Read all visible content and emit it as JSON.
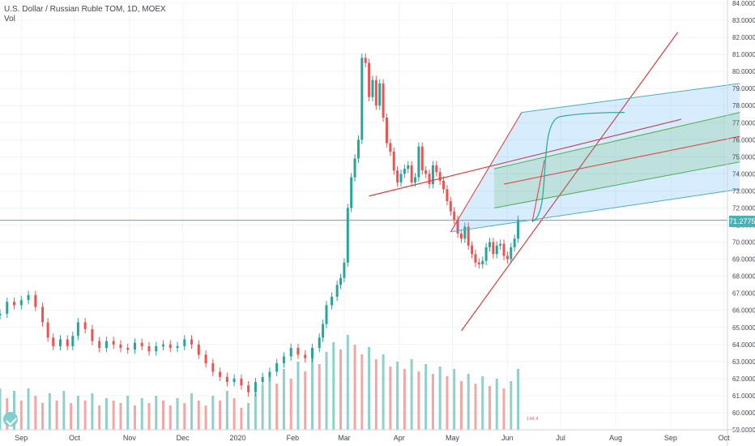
{
  "header": {
    "symbol_line": "U.S. Dollar / Russian Ruble TOM, 1D, MOEX",
    "volume_label": "Vol"
  },
  "last_price": "71.2775",
  "colors": {
    "up": "#26a69a",
    "down": "#ef5350",
    "vol_up": "#8fd0c8",
    "vol_down": "#f4a6a4",
    "trend": "#e53935",
    "channel_blue": "#2196f3",
    "channel_green": "#4caf50"
  },
  "chart_data": {
    "type": "candlestick",
    "ylim": [
      59.0,
      84.0
    ],
    "y_ticks": [
      "59.0000",
      "60.0000",
      "61.0000",
      "62.0000",
      "63.0000",
      "64.0000",
      "65.0000",
      "66.0000",
      "67.0000",
      "68.0000",
      "69.0000",
      "70.0000",
      "71.0000",
      "72.0000",
      "73.0000",
      "74.0000",
      "75.0000",
      "76.0000",
      "77.0000",
      "78.0000",
      "79.0000",
      "80.0000",
      "81.0000",
      "82.0000",
      "83.0000",
      "84.0000"
    ],
    "x_labels": [
      "Sep",
      "Oct",
      "Nov",
      "Dec",
      "2020",
      "Feb",
      "Mar",
      "Apr",
      "May",
      "Jun",
      "Jul",
      "Aug",
      "Sep",
      "Oct"
    ],
    "x_label_days": [
      0,
      30,
      61,
      91,
      122,
      153,
      182,
      213,
      243,
      274,
      304,
      335,
      366,
      396
    ],
    "x_range_days": [
      -12,
      398
    ],
    "price_series": [
      [
        -12,
        65.8
      ],
      [
        -8,
        66.5
      ],
      [
        -4,
        66.3
      ],
      [
        0,
        66.6
      ],
      [
        4,
        66.9
      ],
      [
        8,
        66.2
      ],
      [
        12,
        65.3
      ],
      [
        15,
        64.4
      ],
      [
        18,
        63.9
      ],
      [
        22,
        64.3
      ],
      [
        26,
        63.9
      ],
      [
        29,
        64.5
      ],
      [
        32,
        65.3
      ],
      [
        36,
        64.9
      ],
      [
        40,
        64.2
      ],
      [
        44,
        63.8
      ],
      [
        48,
        64.2
      ],
      [
        52,
        64.0
      ],
      [
        56,
        63.8
      ],
      [
        60,
        63.7
      ],
      [
        64,
        64.1
      ],
      [
        68,
        63.9
      ],
      [
        72,
        63.6
      ],
      [
        76,
        63.9
      ],
      [
        80,
        64.0
      ],
      [
        84,
        63.8
      ],
      [
        88,
        63.9
      ],
      [
        92,
        64.3
      ],
      [
        96,
        64.0
      ],
      [
        100,
        63.4
      ],
      [
        104,
        62.9
      ],
      [
        108,
        62.4
      ],
      [
        112,
        62.1
      ],
      [
        116,
        61.8
      ],
      [
        120,
        62.0
      ],
      [
        124,
        61.6
      ],
      [
        128,
        61.2
      ],
      [
        132,
        61.8
      ],
      [
        136,
        62.1
      ],
      [
        140,
        62.4
      ],
      [
        144,
        62.9
      ],
      [
        148,
        63.3
      ],
      [
        152,
        63.8
      ],
      [
        156,
        63.4
      ],
      [
        160,
        63.2
      ],
      [
        164,
        63.8
      ],
      [
        168,
        64.4
      ],
      [
        170,
        65.2
      ],
      [
        172,
        66.3
      ],
      [
        175,
        66.8
      ],
      [
        178,
        67.5
      ],
      [
        180,
        67.9
      ],
      [
        182,
        68.8
      ],
      [
        184,
        72.0
      ],
      [
        186,
        73.8
      ],
      [
        188,
        74.9
      ],
      [
        190,
        76.0
      ],
      [
        192,
        80.8
      ],
      [
        194,
        80.5
      ],
      [
        196,
        78.5
      ],
      [
        198,
        79.5
      ],
      [
        200,
        78.0
      ],
      [
        202,
        79.3
      ],
      [
        204,
        77.3
      ],
      [
        206,
        75.8
      ],
      [
        208,
        75.3
      ],
      [
        210,
        74.2
      ],
      [
        212,
        73.5
      ],
      [
        214,
        74.0
      ],
      [
        216,
        74.3
      ],
      [
        218,
        74.5
      ],
      [
        220,
        73.5
      ],
      [
        222,
        73.8
      ],
      [
        224,
        75.6
      ],
      [
        226,
        74.2
      ],
      [
        228,
        74.0
      ],
      [
        230,
        73.4
      ],
      [
        232,
        74.5
      ],
      [
        234,
        74.1
      ],
      [
        236,
        73.6
      ],
      [
        238,
        73.1
      ],
      [
        240,
        72.4
      ],
      [
        242,
        71.8
      ],
      [
        244,
        71.3
      ],
      [
        246,
        70.5
      ],
      [
        248,
        70.2
      ],
      [
        250,
        70.9
      ],
      [
        252,
        69.8
      ],
      [
        254,
        69.3
      ],
      [
        256,
        68.8
      ],
      [
        258,
        68.7
      ],
      [
        260,
        68.9
      ],
      [
        262,
        69.7
      ],
      [
        264,
        70.0
      ],
      [
        266,
        69.3
      ],
      [
        268,
        69.8
      ],
      [
        270,
        69.9
      ],
      [
        272,
        69.2
      ],
      [
        274,
        69.0
      ],
      [
        276,
        69.7
      ],
      [
        278,
        70.2
      ],
      [
        280,
        71.3
      ]
    ],
    "volume_series": [
      [
        -12,
        1.7
      ],
      [
        -8,
        1.3
      ],
      [
        -4,
        1.6
      ],
      [
        0,
        1.2
      ],
      [
        4,
        1.7
      ],
      [
        8,
        1.4
      ],
      [
        12,
        1.1
      ],
      [
        16,
        1.5
      ],
      [
        20,
        1.2
      ],
      [
        24,
        1.6
      ],
      [
        28,
        1.1
      ],
      [
        32,
        1.4
      ],
      [
        36,
        1.2
      ],
      [
        40,
        1.5
      ],
      [
        44,
        1.0
      ],
      [
        48,
        1.3
      ],
      [
        52,
        1.2
      ],
      [
        56,
        1.1
      ],
      [
        60,
        1.4
      ],
      [
        64,
        1.0
      ],
      [
        68,
        1.3
      ],
      [
        72,
        1.1
      ],
      [
        76,
        1.4
      ],
      [
        80,
        1.2
      ],
      [
        84,
        1.0
      ],
      [
        88,
        1.3
      ],
      [
        92,
        1.1
      ],
      [
        96,
        1.5
      ],
      [
        100,
        1.2
      ],
      [
        104,
        1.0
      ],
      [
        108,
        1.4
      ],
      [
        112,
        1.2
      ],
      [
        116,
        1.6
      ],
      [
        120,
        1.3
      ],
      [
        124,
        0.9
      ],
      [
        128,
        1.1
      ],
      [
        132,
        1.5
      ],
      [
        136,
        1.8
      ],
      [
        140,
        2.2
      ],
      [
        144,
        1.9
      ],
      [
        148,
        2.5
      ],
      [
        152,
        2.1
      ],
      [
        156,
        2.8
      ],
      [
        160,
        2.4
      ],
      [
        164,
        3.0
      ],
      [
        168,
        2.7
      ],
      [
        172,
        3.2
      ],
      [
        176,
        3.6
      ],
      [
        180,
        3.3
      ],
      [
        184,
        3.9
      ],
      [
        188,
        3.5
      ],
      [
        192,
        3.1
      ],
      [
        196,
        3.4
      ],
      [
        200,
        2.9
      ],
      [
        204,
        3.1
      ],
      [
        208,
        2.6
      ],
      [
        212,
        2.8
      ],
      [
        216,
        2.5
      ],
      [
        220,
        2.9
      ],
      [
        224,
        2.4
      ],
      [
        228,
        2.7
      ],
      [
        232,
        2.3
      ],
      [
        236,
        2.6
      ],
      [
        240,
        2.2
      ],
      [
        244,
        2.5
      ],
      [
        248,
        2.0
      ],
      [
        252,
        2.3
      ],
      [
        256,
        1.9
      ],
      [
        260,
        2.2
      ],
      [
        264,
        1.8
      ],
      [
        268,
        2.1
      ],
      [
        272,
        1.7
      ],
      [
        276,
        2.0
      ],
      [
        280,
        2.5
      ]
    ],
    "overlays": [
      {
        "kind": "ray",
        "x": [
          248,
          370
        ],
        "y": [
          64.8,
          82.3
        ]
      },
      {
        "kind": "ray",
        "x": [
          196,
          372
        ],
        "y": [
          72.7,
          77.2
        ]
      },
      {
        "kind": "channel",
        "x": [
          242,
          405
        ],
        "y_bottom": [
          70.6,
          73.1
        ],
        "y_top": [
          70.6,
          79.3
        ]
      },
      {
        "kind": "curve",
        "x": [
          288,
          340
        ],
        "y": [
          71.2,
          77.6
        ]
      }
    ]
  },
  "watermark_text": "144 4"
}
